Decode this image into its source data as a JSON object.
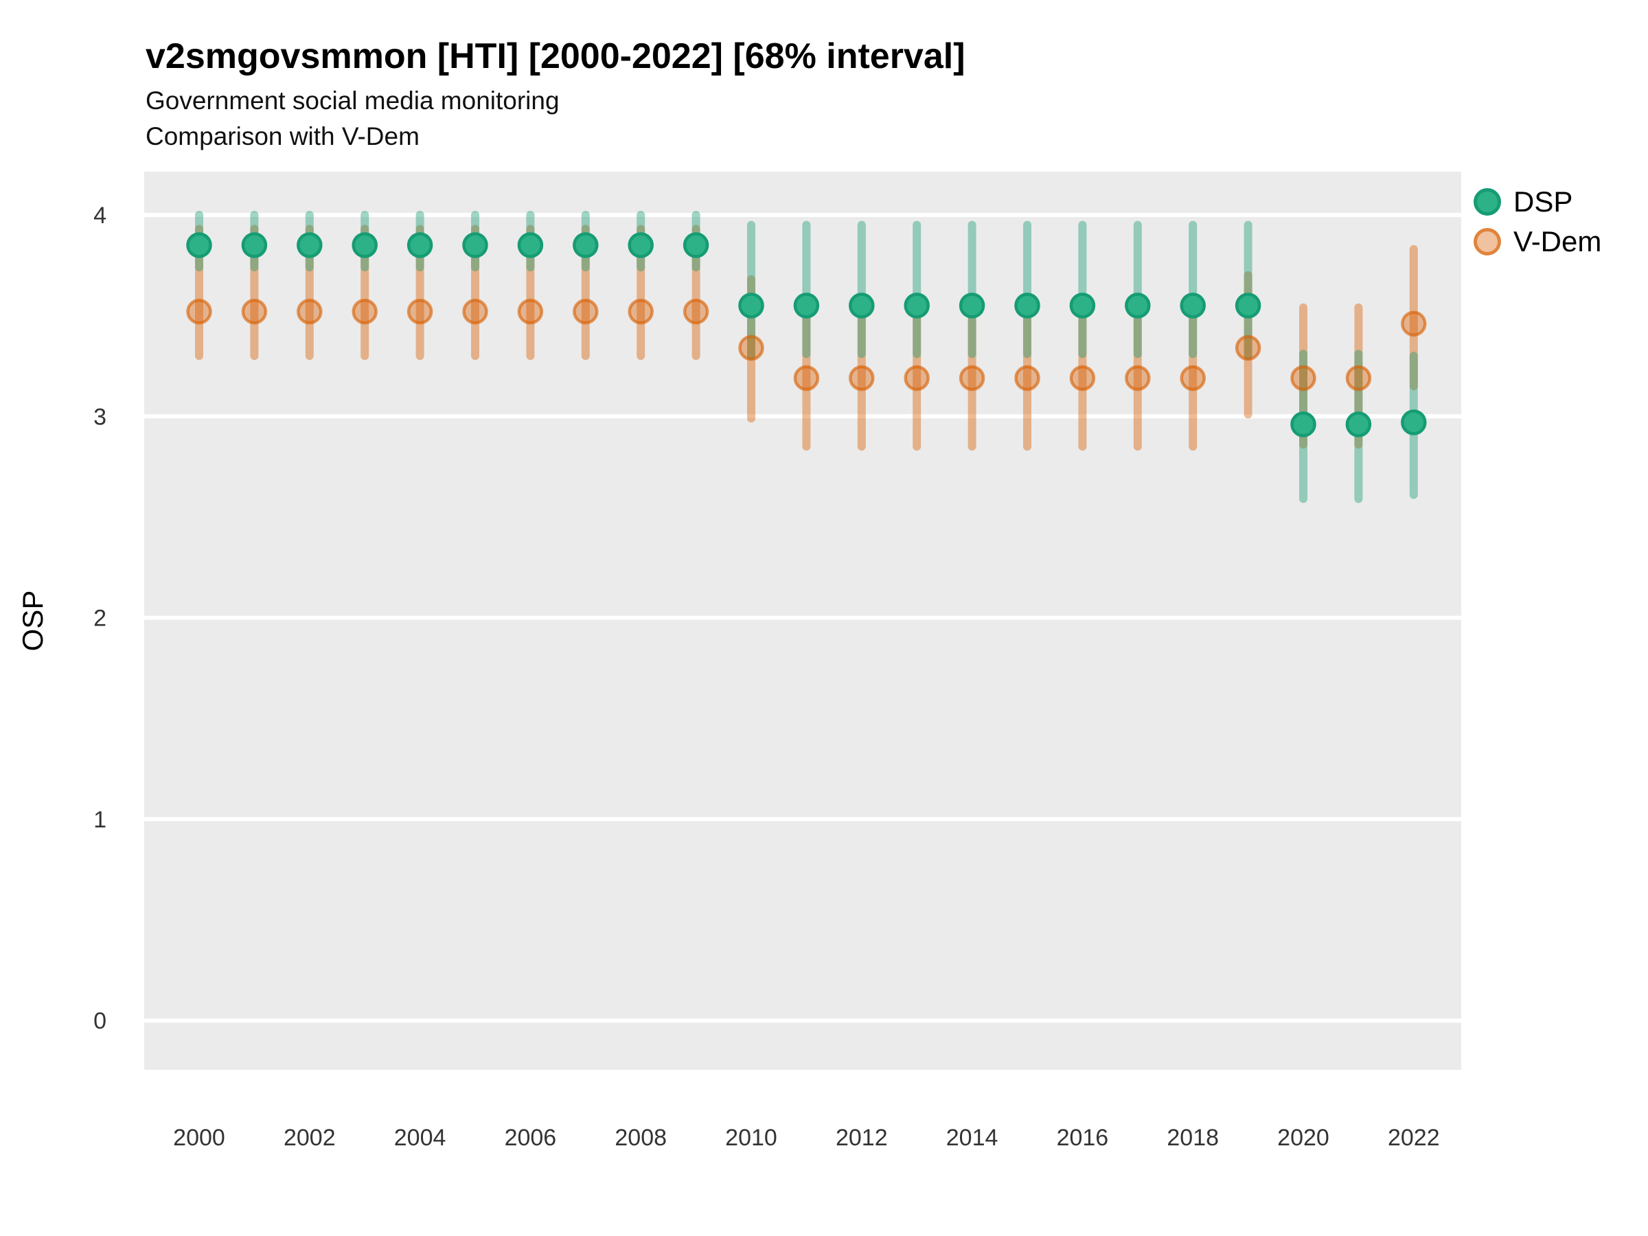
{
  "header": {
    "title": "v2smgovsmmon [HTI] [2000-2022] [68% interval]",
    "subtitle1": "Government social media monitoring",
    "subtitle2": "Comparison with V-Dem"
  },
  "legend": [
    {
      "label": "DSP",
      "color": "#1B9E77"
    },
    {
      "label": "V-Dem",
      "color": "#D95F02"
    }
  ],
  "chart_data": {
    "type": "scatter",
    "subtype": "pointrange",
    "title": "v2smgovsmmon [HTI] [2000-2022] [68% interval]",
    "subtitle": [
      "Government social media monitoring",
      "Comparison with V-Dem"
    ],
    "interval": "68%",
    "xlabel": "",
    "ylabel": "OSP",
    "grid": "horizontal-major-white-on-grey",
    "panel_color": "#EBEBEB",
    "gridline_color": "#FFFFFF",
    "legend_position": "right",
    "x": [
      2000,
      2001,
      2002,
      2003,
      2004,
      2005,
      2006,
      2007,
      2008,
      2009,
      2010,
      2011,
      2012,
      2013,
      2014,
      2015,
      2016,
      2017,
      2018,
      2019,
      2020,
      2021,
      2022
    ],
    "xticks": [
      2000,
      2002,
      2004,
      2006,
      2008,
      2010,
      2012,
      2014,
      2016,
      2018,
      2020,
      2022
    ],
    "yticks": [
      0,
      1,
      2,
      3,
      4
    ],
    "xlim": [
      1999.0,
      2022.9
    ],
    "ylim": [
      -0.25,
      4.22
    ],
    "series": [
      {
        "name": "DSP",
        "color": "#1B9E77",
        "values": [
          3.85,
          3.85,
          3.85,
          3.85,
          3.85,
          3.85,
          3.85,
          3.85,
          3.85,
          3.85,
          3.55,
          3.55,
          3.55,
          3.55,
          3.55,
          3.55,
          3.55,
          3.55,
          3.55,
          3.55,
          2.96,
          2.96,
          2.97
        ],
        "lo": [
          3.74,
          3.74,
          3.74,
          3.74,
          3.74,
          3.74,
          3.74,
          3.74,
          3.74,
          3.74,
          3.3,
          3.31,
          3.31,
          3.31,
          3.31,
          3.31,
          3.31,
          3.31,
          3.31,
          3.3,
          2.59,
          2.59,
          2.61
        ],
        "hi": [
          4.0,
          4.0,
          4.0,
          4.0,
          4.0,
          4.0,
          4.0,
          4.0,
          4.0,
          4.0,
          3.95,
          3.95,
          3.95,
          3.95,
          3.95,
          3.95,
          3.95,
          3.95,
          3.95,
          3.95,
          3.31,
          3.31,
          3.3
        ]
      },
      {
        "name": "V-Dem",
        "color": "#D95F02",
        "values": [
          3.52,
          3.52,
          3.52,
          3.52,
          3.52,
          3.52,
          3.52,
          3.52,
          3.52,
          3.52,
          3.34,
          3.19,
          3.19,
          3.19,
          3.19,
          3.19,
          3.19,
          3.19,
          3.19,
          3.34,
          3.19,
          3.19,
          3.46
        ],
        "lo": [
          3.3,
          3.3,
          3.3,
          3.3,
          3.3,
          3.3,
          3.3,
          3.3,
          3.3,
          3.3,
          2.99,
          2.85,
          2.85,
          2.85,
          2.85,
          2.85,
          2.85,
          2.85,
          2.85,
          3.01,
          2.86,
          2.86,
          3.15
        ],
        "hi": [
          3.93,
          3.93,
          3.93,
          3.93,
          3.93,
          3.93,
          3.93,
          3.93,
          3.93,
          3.93,
          3.68,
          3.51,
          3.51,
          3.51,
          3.51,
          3.51,
          3.51,
          3.51,
          3.51,
          3.7,
          3.54,
          3.54,
          3.83
        ]
      }
    ]
  }
}
